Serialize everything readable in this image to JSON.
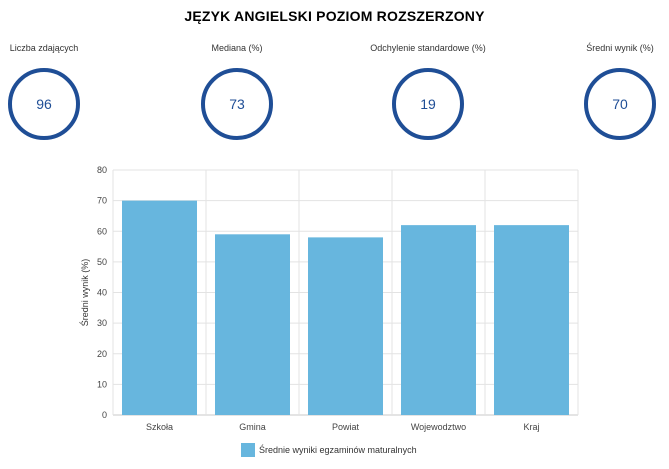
{
  "title": "JĘZYK ANGIELSKI POZIOM ROZSZERZONY",
  "stats": [
    {
      "label": "Liczba zdających",
      "value": "96"
    },
    {
      "label": "Mediana (%)",
      "value": "73"
    },
    {
      "label": "Odchylenie standardowe (%)",
      "value": "19"
    },
    {
      "label": "Średni wynik (%)",
      "value": "70"
    }
  ],
  "colors": {
    "circle": "#1f4e96",
    "bar": "#67b6de",
    "grid": "#e3e3e3"
  },
  "chart_data": {
    "type": "bar",
    "categories": [
      "Szkoła",
      "Gmina",
      "Powiat",
      "Wojewodztwo",
      "Kraj"
    ],
    "series": [
      {
        "name": "Średnie wyniki egzaminów maturalnych",
        "values": [
          70,
          59,
          58,
          62,
          62
        ]
      }
    ],
    "ylabel": "Średni wynik (%)",
    "xlabel": "",
    "ylim": [
      0,
      80
    ],
    "yticks": [
      0,
      10,
      20,
      30,
      40,
      50,
      60,
      70,
      80
    ],
    "grid": true,
    "legend": "bottom-center"
  }
}
